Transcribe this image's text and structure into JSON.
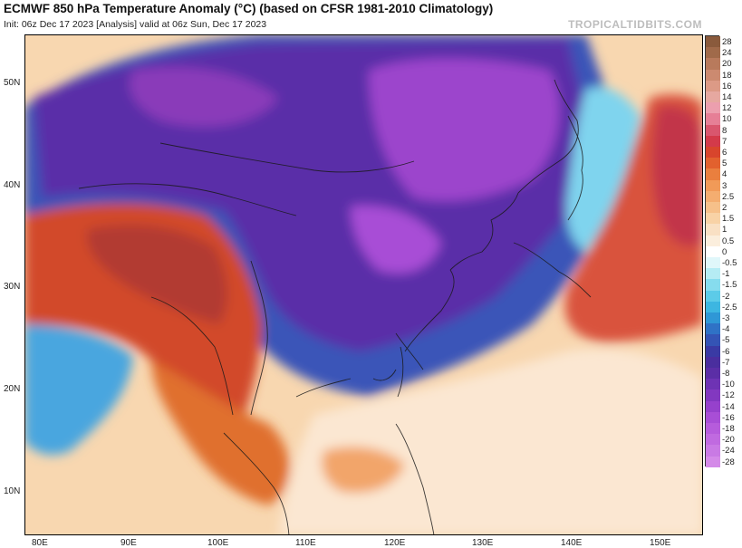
{
  "header": {
    "title": "ECMWF 850 hPa Temperature Anomaly (°C) (based on CFSR 1981-2010 Climatology)",
    "subtitle": "Init: 06z Dec 17 2023   [Analysis]   valid at 06z Sun, Dec 17 2023",
    "brand": "TROPICALTIDBITS.COM"
  },
  "axes": {
    "lat_labels": [
      "50N",
      "40N",
      "30N",
      "20N",
      "10N"
    ],
    "lon_labels": [
      "80E",
      "90E",
      "100E",
      "110E",
      "120E",
      "130E",
      "140E",
      "150E"
    ]
  },
  "colorbar": {
    "labels": [
      "28",
      "24",
      "20",
      "18",
      "16",
      "14",
      "12",
      "10",
      "8",
      "7",
      "6",
      "5",
      "4",
      "3",
      "2.5",
      "2",
      "1.5",
      "1",
      "0.5",
      "0",
      "-0.5",
      "-1",
      "-1.5",
      "-2",
      "-2.5",
      "-3",
      "-4",
      "-5",
      "-6",
      "-7",
      "-8",
      "-10",
      "-12",
      "-14",
      "-16",
      "-18",
      "-20",
      "-24",
      "-28"
    ],
    "colors": [
      "#8a5a3c",
      "#a06a4a",
      "#b87a5c",
      "#cc8a70",
      "#dc9a86",
      "#e6a8a0",
      "#ec9fae",
      "#e67f96",
      "#d9566e",
      "#d33a4a",
      "#d8452c",
      "#e2612e",
      "#ea7f3e",
      "#f19a58",
      "#f4ad70",
      "#f6c08a",
      "#f8d2a6",
      "#f9e0c4",
      "#fbeedd",
      "#ffffff",
      "#e0f7fa",
      "#b5ecf4",
      "#86dcee",
      "#5ccbe8",
      "#3db6e1",
      "#2f97d6",
      "#2f72c6",
      "#3454b5",
      "#3a3aa4",
      "#4a2e9e",
      "#5b2ea6",
      "#6e33b4",
      "#8238c0",
      "#9641cc",
      "#a84ed6",
      "#b65cdc",
      "#c06ae0",
      "#c97ae4",
      "#d48ae8"
    ]
  },
  "map": {
    "region": "East Asia",
    "extent_lon": [
      78,
      155
    ],
    "extent_lat": [
      7,
      55
    ]
  }
}
